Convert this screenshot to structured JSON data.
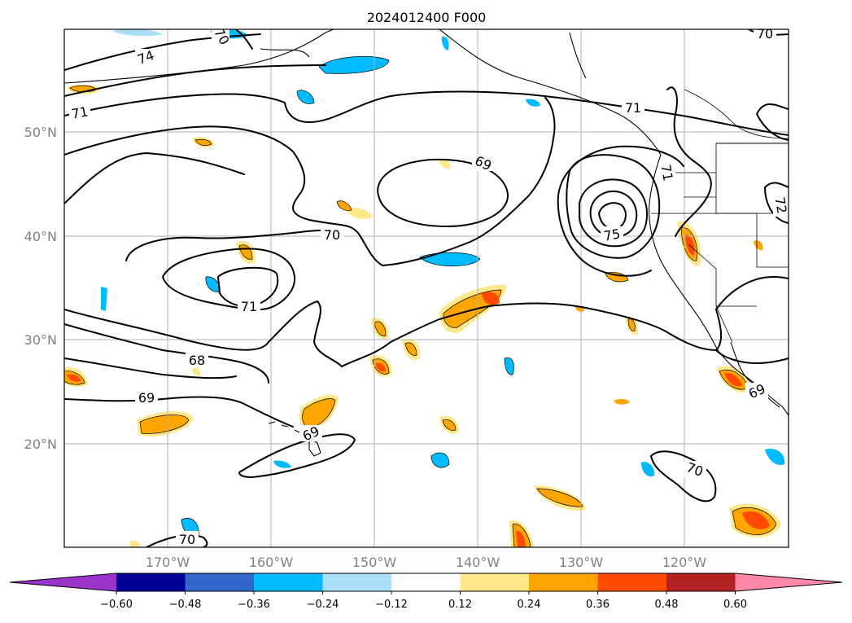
{
  "title": "2024012400 F000",
  "lat_labels": [
    "50°N",
    "40°N",
    "30°N",
    "20°N"
  ],
  "lon_labels": [
    "170°W",
    "160°W",
    "150°W",
    "140°W",
    "130°W",
    "120°W"
  ],
  "contour_labels": [
    "74",
    "71",
    "71",
    "70",
    "69",
    "71",
    "68",
    "69",
    "69",
    "75",
    "71",
    "72",
    "70",
    "69",
    "70",
    "70",
    "70"
  ],
  "colorbar": {
    "tick_labels": [
      "−0.60",
      "−0.48",
      "−0.36",
      "−0.24",
      "−0.12",
      "0.12",
      "0.24",
      "0.36",
      "0.48",
      "0.60"
    ],
    "colors": [
      "#9933cc",
      "#000099",
      "#3366cc",
      "#00bbff",
      "#aaddf8",
      "#ffffff",
      "#ffe88a",
      "#ffa500",
      "#ff4a00",
      "#b22222",
      "#ff88aa"
    ]
  }
}
